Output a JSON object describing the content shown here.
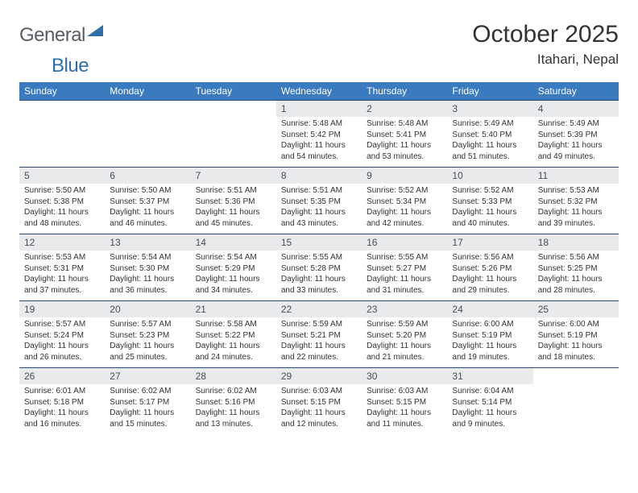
{
  "brand": {
    "name1": "General",
    "name2": "Blue"
  },
  "title": "October 2025",
  "location": "Itahari, Nepal",
  "weekday_header_bg": "#3a7abf",
  "weekday_header_fg": "#ffffff",
  "daynum_bg": "#e9eaec",
  "border_color": "#2b4a6b",
  "text_color": "#333333",
  "weekdays": [
    "Sunday",
    "Monday",
    "Tuesday",
    "Wednesday",
    "Thursday",
    "Friday",
    "Saturday"
  ],
  "weeks": [
    [
      {
        "n": "",
        "sunrise": "",
        "sunset": "",
        "daylight": ""
      },
      {
        "n": "",
        "sunrise": "",
        "sunset": "",
        "daylight": ""
      },
      {
        "n": "",
        "sunrise": "",
        "sunset": "",
        "daylight": ""
      },
      {
        "n": "1",
        "sunrise": "Sunrise: 5:48 AM",
        "sunset": "Sunset: 5:42 PM",
        "daylight": "Daylight: 11 hours and 54 minutes."
      },
      {
        "n": "2",
        "sunrise": "Sunrise: 5:48 AM",
        "sunset": "Sunset: 5:41 PM",
        "daylight": "Daylight: 11 hours and 53 minutes."
      },
      {
        "n": "3",
        "sunrise": "Sunrise: 5:49 AM",
        "sunset": "Sunset: 5:40 PM",
        "daylight": "Daylight: 11 hours and 51 minutes."
      },
      {
        "n": "4",
        "sunrise": "Sunrise: 5:49 AM",
        "sunset": "Sunset: 5:39 PM",
        "daylight": "Daylight: 11 hours and 49 minutes."
      }
    ],
    [
      {
        "n": "5",
        "sunrise": "Sunrise: 5:50 AM",
        "sunset": "Sunset: 5:38 PM",
        "daylight": "Daylight: 11 hours and 48 minutes."
      },
      {
        "n": "6",
        "sunrise": "Sunrise: 5:50 AM",
        "sunset": "Sunset: 5:37 PM",
        "daylight": "Daylight: 11 hours and 46 minutes."
      },
      {
        "n": "7",
        "sunrise": "Sunrise: 5:51 AM",
        "sunset": "Sunset: 5:36 PM",
        "daylight": "Daylight: 11 hours and 45 minutes."
      },
      {
        "n": "8",
        "sunrise": "Sunrise: 5:51 AM",
        "sunset": "Sunset: 5:35 PM",
        "daylight": "Daylight: 11 hours and 43 minutes."
      },
      {
        "n": "9",
        "sunrise": "Sunrise: 5:52 AM",
        "sunset": "Sunset: 5:34 PM",
        "daylight": "Daylight: 11 hours and 42 minutes."
      },
      {
        "n": "10",
        "sunrise": "Sunrise: 5:52 AM",
        "sunset": "Sunset: 5:33 PM",
        "daylight": "Daylight: 11 hours and 40 minutes."
      },
      {
        "n": "11",
        "sunrise": "Sunrise: 5:53 AM",
        "sunset": "Sunset: 5:32 PM",
        "daylight": "Daylight: 11 hours and 39 minutes."
      }
    ],
    [
      {
        "n": "12",
        "sunrise": "Sunrise: 5:53 AM",
        "sunset": "Sunset: 5:31 PM",
        "daylight": "Daylight: 11 hours and 37 minutes."
      },
      {
        "n": "13",
        "sunrise": "Sunrise: 5:54 AM",
        "sunset": "Sunset: 5:30 PM",
        "daylight": "Daylight: 11 hours and 36 minutes."
      },
      {
        "n": "14",
        "sunrise": "Sunrise: 5:54 AM",
        "sunset": "Sunset: 5:29 PM",
        "daylight": "Daylight: 11 hours and 34 minutes."
      },
      {
        "n": "15",
        "sunrise": "Sunrise: 5:55 AM",
        "sunset": "Sunset: 5:28 PM",
        "daylight": "Daylight: 11 hours and 33 minutes."
      },
      {
        "n": "16",
        "sunrise": "Sunrise: 5:55 AM",
        "sunset": "Sunset: 5:27 PM",
        "daylight": "Daylight: 11 hours and 31 minutes."
      },
      {
        "n": "17",
        "sunrise": "Sunrise: 5:56 AM",
        "sunset": "Sunset: 5:26 PM",
        "daylight": "Daylight: 11 hours and 29 minutes."
      },
      {
        "n": "18",
        "sunrise": "Sunrise: 5:56 AM",
        "sunset": "Sunset: 5:25 PM",
        "daylight": "Daylight: 11 hours and 28 minutes."
      }
    ],
    [
      {
        "n": "19",
        "sunrise": "Sunrise: 5:57 AM",
        "sunset": "Sunset: 5:24 PM",
        "daylight": "Daylight: 11 hours and 26 minutes."
      },
      {
        "n": "20",
        "sunrise": "Sunrise: 5:57 AM",
        "sunset": "Sunset: 5:23 PM",
        "daylight": "Daylight: 11 hours and 25 minutes."
      },
      {
        "n": "21",
        "sunrise": "Sunrise: 5:58 AM",
        "sunset": "Sunset: 5:22 PM",
        "daylight": "Daylight: 11 hours and 24 minutes."
      },
      {
        "n": "22",
        "sunrise": "Sunrise: 5:59 AM",
        "sunset": "Sunset: 5:21 PM",
        "daylight": "Daylight: 11 hours and 22 minutes."
      },
      {
        "n": "23",
        "sunrise": "Sunrise: 5:59 AM",
        "sunset": "Sunset: 5:20 PM",
        "daylight": "Daylight: 11 hours and 21 minutes."
      },
      {
        "n": "24",
        "sunrise": "Sunrise: 6:00 AM",
        "sunset": "Sunset: 5:19 PM",
        "daylight": "Daylight: 11 hours and 19 minutes."
      },
      {
        "n": "25",
        "sunrise": "Sunrise: 6:00 AM",
        "sunset": "Sunset: 5:19 PM",
        "daylight": "Daylight: 11 hours and 18 minutes."
      }
    ],
    [
      {
        "n": "26",
        "sunrise": "Sunrise: 6:01 AM",
        "sunset": "Sunset: 5:18 PM",
        "daylight": "Daylight: 11 hours and 16 minutes."
      },
      {
        "n": "27",
        "sunrise": "Sunrise: 6:02 AM",
        "sunset": "Sunset: 5:17 PM",
        "daylight": "Daylight: 11 hours and 15 minutes."
      },
      {
        "n": "28",
        "sunrise": "Sunrise: 6:02 AM",
        "sunset": "Sunset: 5:16 PM",
        "daylight": "Daylight: 11 hours and 13 minutes."
      },
      {
        "n": "29",
        "sunrise": "Sunrise: 6:03 AM",
        "sunset": "Sunset: 5:15 PM",
        "daylight": "Daylight: 11 hours and 12 minutes."
      },
      {
        "n": "30",
        "sunrise": "Sunrise: 6:03 AM",
        "sunset": "Sunset: 5:15 PM",
        "daylight": "Daylight: 11 hours and 11 minutes."
      },
      {
        "n": "31",
        "sunrise": "Sunrise: 6:04 AM",
        "sunset": "Sunset: 5:14 PM",
        "daylight": "Daylight: 11 hours and 9 minutes."
      },
      {
        "n": "",
        "sunrise": "",
        "sunset": "",
        "daylight": ""
      }
    ]
  ]
}
